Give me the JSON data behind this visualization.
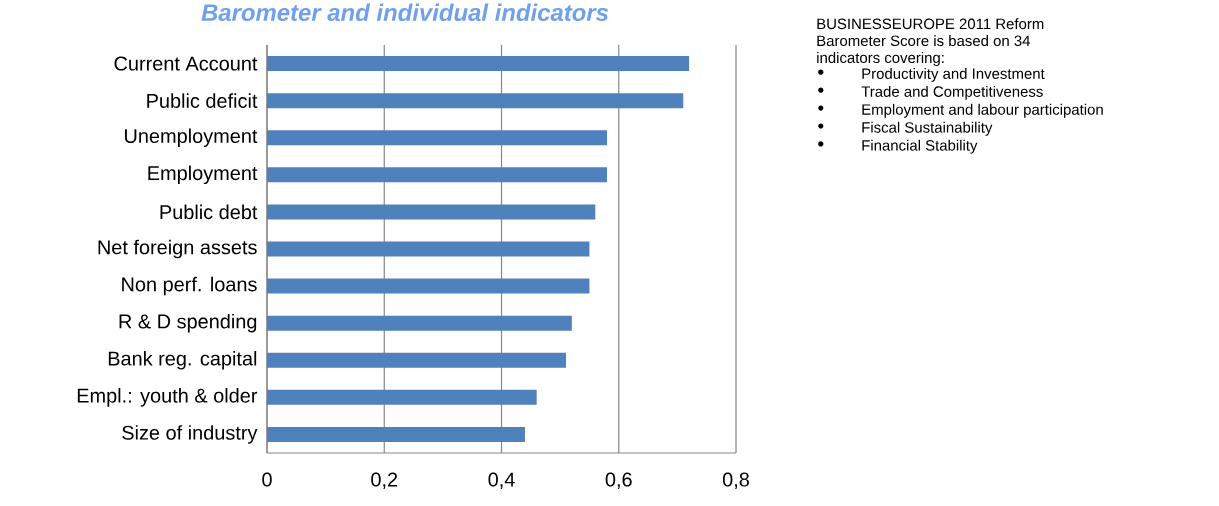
{
  "chart_data": {
    "type": "bar",
    "orientation": "horizontal",
    "title": "Barometer and individual indicators",
    "categories": [
      "Current Account",
      "Public deficit",
      "Unemployment",
      "Employment",
      "Public debt",
      "Net foreign assets",
      "Non perf. loans",
      "R & D spending",
      "Bank reg. capital",
      "Empl.: youth & older",
      "Size of industry"
    ],
    "values": [
      0.72,
      0.71,
      0.58,
      0.58,
      0.56,
      0.55,
      0.55,
      0.52,
      0.51,
      0.46,
      0.44
    ],
    "color": "#4f81bd",
    "xlim": [
      0,
      0.8
    ],
    "xticks": [
      0,
      {
        "value": 0.2,
        "label": "0,2"
      },
      {
        "value": 0.4,
        "label": "0,4"
      },
      {
        "value": 0.6,
        "label": "0,6"
      },
      {
        "value": 0.8,
        "label": "0,8"
      }
    ],
    "grid": "x",
    "annotations": [
      "BUSINESSEUROPE 2011 Reform Barometer Score is based on 34 indicators covering:",
      "Productivity and Investment",
      "Trade and Competitiveness",
      "Employment and labour participation",
      "Fiscal Sustainability",
      "Financial Stability"
    ]
  }
}
